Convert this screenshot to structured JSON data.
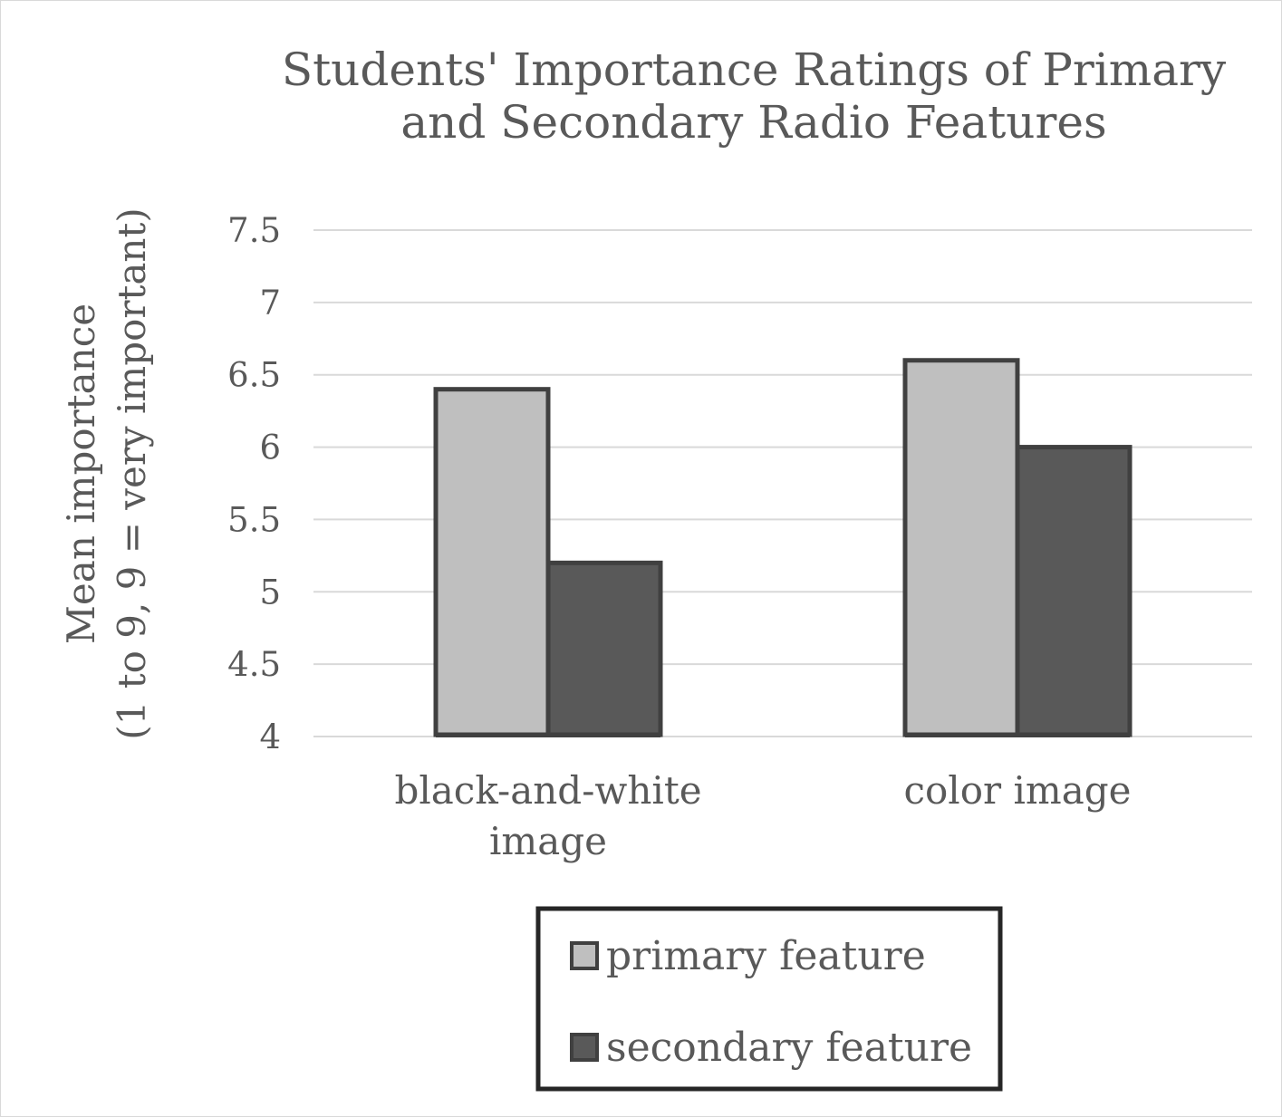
{
  "chart_data": {
    "type": "bar",
    "title": [
      "Students' Importance Ratings of Primary",
      "and Secondary Radio Features"
    ],
    "ylabel": [
      "Mean importance",
      "(1 to 9, 9 = very important)"
    ],
    "xlabel": "",
    "categories": [
      [
        "black-and-white",
        "image"
      ],
      [
        "color image"
      ]
    ],
    "series": [
      {
        "name": "primary feature",
        "values": [
          6.4,
          6.6
        ],
        "color": "#bfbfbf"
      },
      {
        "name": "secondary feature",
        "values": [
          5.2,
          6.0
        ],
        "color": "#595959"
      }
    ],
    "ylim": [
      4,
      7.5
    ],
    "yticks": [
      4,
      4.5,
      5,
      5.5,
      6,
      6.5,
      7,
      7.5
    ],
    "ytick_labels": [
      "4",
      "4.5",
      "5",
      "5.5",
      "6",
      "6.5",
      "7",
      "7.5"
    ],
    "grid": true,
    "legend_position": "bottom",
    "bar_outline_color": "#404040",
    "gridline_color": "#d9d9d9"
  }
}
